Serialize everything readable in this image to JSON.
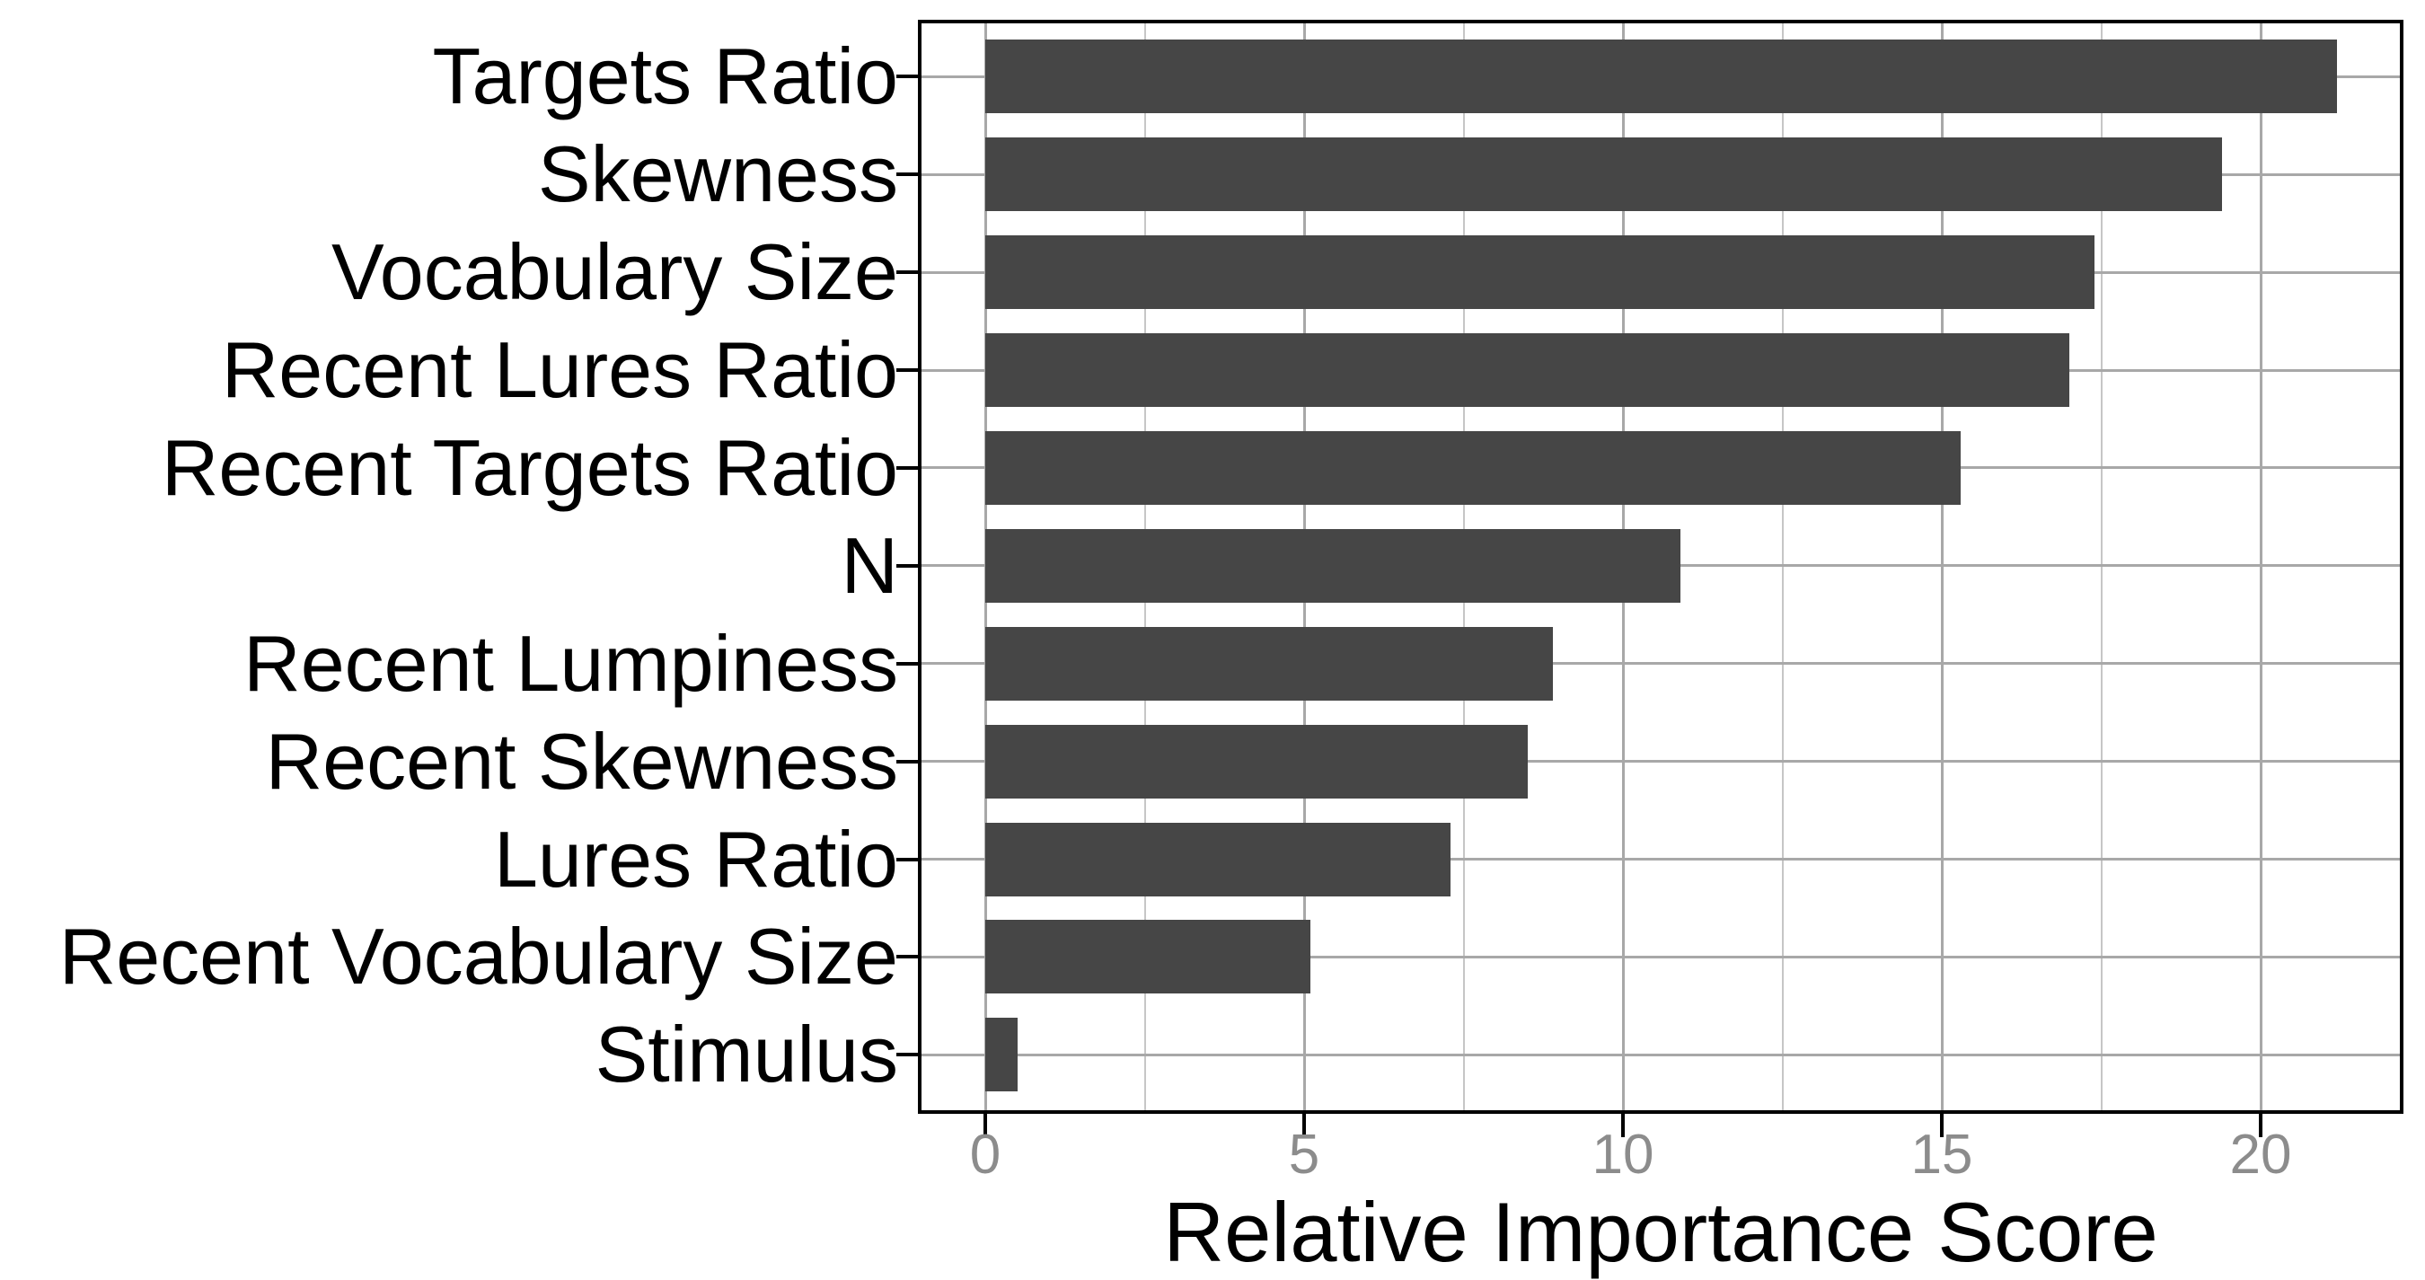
{
  "chart_data": {
    "type": "bar",
    "orientation": "horizontal",
    "title": "",
    "xlabel": "Relative Importance Score",
    "ylabel": "",
    "categories": [
      "Targets Ratio",
      "Skewness",
      "Vocabulary Size",
      "Recent Lures Ratio",
      "Recent Targets Ratio",
      "N",
      "Recent Lumpiness",
      "Recent Skewness",
      "Lures Ratio",
      "Recent Vocabulary Size",
      "Stimulus"
    ],
    "values": [
      21.2,
      19.4,
      17.4,
      17.0,
      15.3,
      10.9,
      8.9,
      8.5,
      7.3,
      5.1,
      0.5
    ],
    "x_major_ticks": [
      0,
      5,
      10,
      15,
      20
    ],
    "x_major_tick_labels": [
      "0",
      "5",
      "10",
      "15",
      "20"
    ],
    "x_minor_ticks": [
      2.5,
      7.5,
      12.5,
      17.5
    ],
    "xlim": [
      -1.06,
      22.26
    ],
    "grid": "vertical major+minor gridlines; horizontal major gridline per category; full black panel border",
    "legend": "none",
    "colors": {
      "bar_fill": "#464646",
      "grid_major": "#a8a8a8",
      "grid_minor": "#c6c6c6",
      "axis_tick_label": "#8c8c8c",
      "axis_title": "#000000",
      "category_label": "#000000",
      "panel_border": "#000000",
      "background": "#ffffff"
    }
  }
}
